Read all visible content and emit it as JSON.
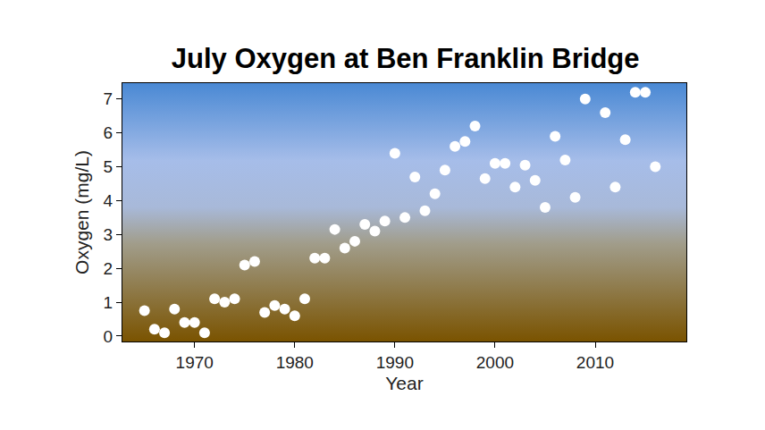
{
  "chart_data": {
    "type": "scatter",
    "title": "July Oxygen at Ben Franklin Bridge",
    "x_label": "Year",
    "y_label": "Oxygen (mg/L)",
    "x": [
      1965,
      1966,
      1967,
      1968,
      1969,
      1970,
      1971,
      1972,
      1973,
      1974,
      1975,
      1976,
      1977,
      1978,
      1979,
      1980,
      1981,
      1982,
      1983,
      1984,
      1985,
      1986,
      1987,
      1988,
      1989,
      1990,
      1991,
      1992,
      1993,
      1994,
      1995,
      1996,
      1997,
      1998,
      1999,
      2000,
      2001,
      2002,
      2003,
      2004,
      2005,
      2006,
      2007,
      2008,
      2009,
      2011,
      2012,
      2013,
      2014,
      2015,
      2016
    ],
    "values": [
      0.75,
      0.2,
      0.1,
      0.8,
      0.4,
      0.4,
      0.1,
      1.1,
      1.0,
      1.1,
      2.1,
      2.2,
      0.7,
      0.9,
      0.8,
      0.6,
      1.1,
      2.3,
      2.3,
      3.15,
      2.6,
      2.8,
      3.3,
      3.1,
      3.4,
      5.4,
      3.5,
      4.7,
      3.7,
      4.2,
      4.9,
      5.6,
      5.75,
      6.2,
      4.65,
      5.1,
      5.1,
      4.4,
      5.05,
      4.6,
      3.8,
      5.9,
      5.2,
      4.1,
      7.0,
      6.6,
      4.4,
      5.8,
      7.2,
      7.2,
      5.0
    ],
    "color": "#ffffff",
    "marker": "circle",
    "xlim": [
      1962.8,
      2019.1
    ],
    "ylim": [
      -0.16,
      7.47
    ],
    "xticks": [
      1970,
      1980,
      1990,
      2000,
      2010
    ],
    "yticks": [
      0,
      1,
      2,
      3,
      4,
      5,
      6,
      7
    ],
    "grid": false
  }
}
